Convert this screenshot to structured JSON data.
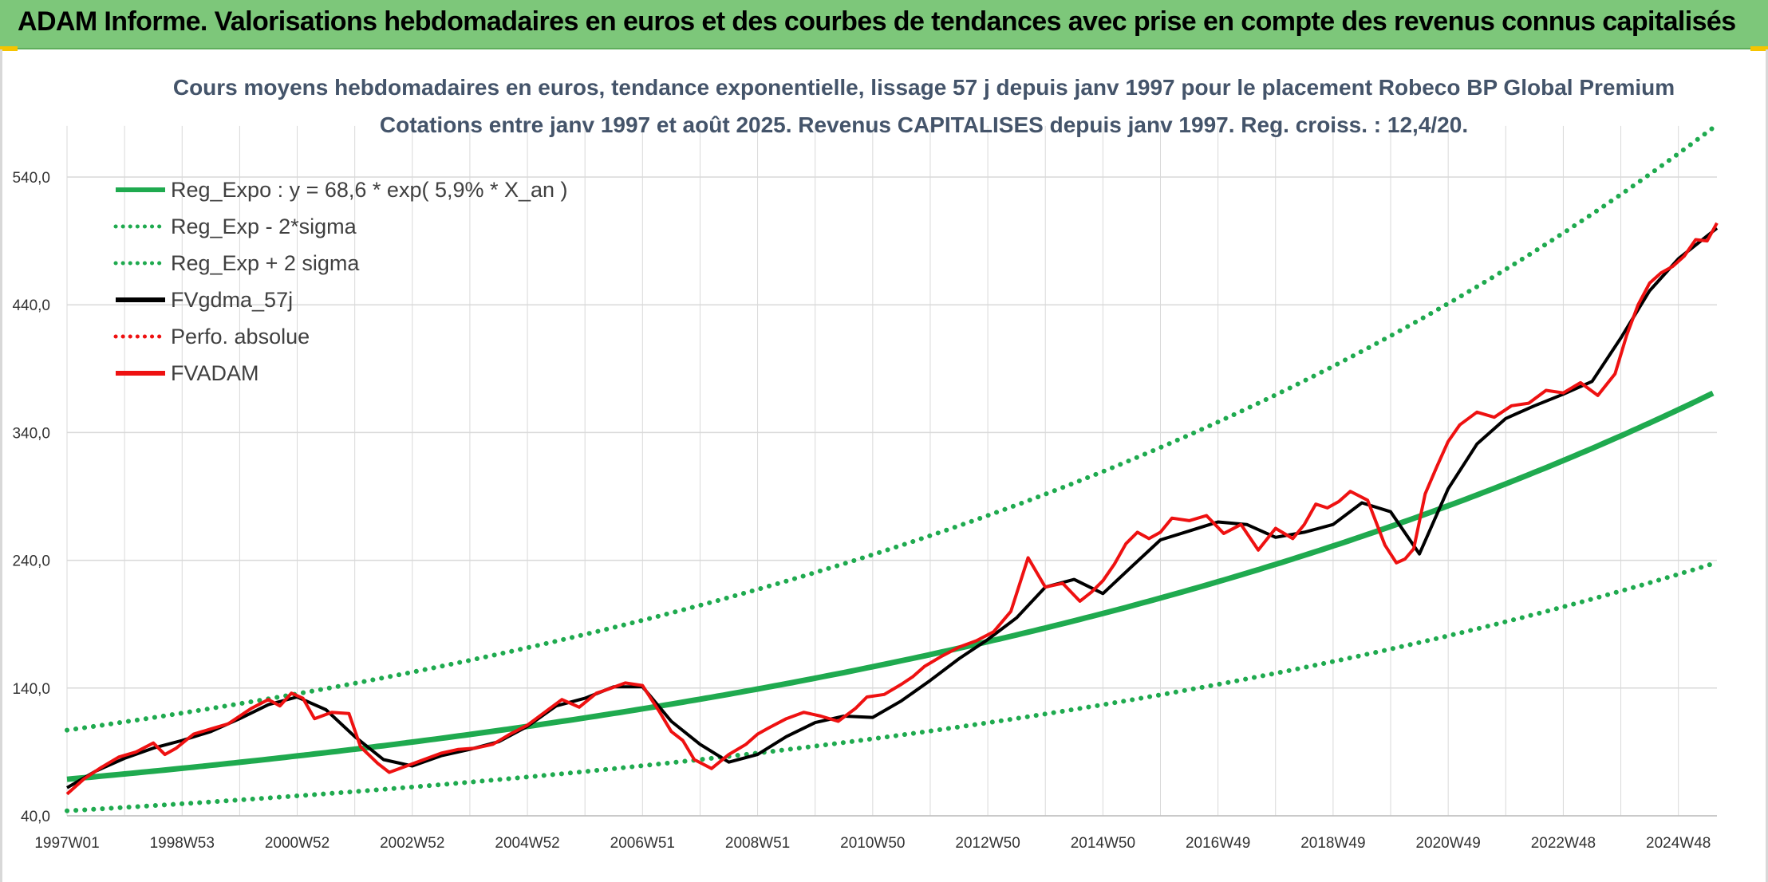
{
  "header": {
    "title": "ADAM Informe. Valorisations hebdomadaires en euros et des courbes de tendances avec prise en compte des revenus connus capitalisés"
  },
  "colors": {
    "header_bg": "#7dc77a",
    "reg_green": "#1faa4f",
    "fvadam_red": "#ee1111",
    "gdma_black": "#000000",
    "grid": "#d9d9d9"
  },
  "chart_data": {
    "type": "line",
    "title_line1": "Cours moyens hebdomadaires en euros, tendance exponentielle, lissage 57 j depuis janv 1997 pour le placement Robeco BP Global Premium",
    "title_line2": "Cotations entre janv 1997 et août 2025. Revenus CAPITALISES depuis janv 1997. Reg. croiss. : 12,4/20.",
    "x_tick_labels": [
      "1997W01",
      "1998W53",
      "2000W52",
      "2002W52",
      "2004W52",
      "2006W51",
      "2008W51",
      "2010W50",
      "2012W50",
      "2014W50",
      "2016W49",
      "2018W49",
      "2020W49",
      "2022W48",
      "2024W48"
    ],
    "y_tick_labels": [
      "40,0",
      "140,0",
      "240,0",
      "340,0",
      "440,0",
      "540,0"
    ],
    "ylim": [
      40,
      580
    ],
    "xlim": [
      1997.0,
      2025.67
    ],
    "grid": true,
    "legend_position": "top-left",
    "legend": [
      {
        "label": "Reg_Expo : y = 68,6 * exp( 5,9% *  X_an )",
        "style": "solid",
        "color": "#1faa4f"
      },
      {
        "label": "Reg_Exp - 2*sigma",
        "style": "dotted",
        "color": "#1faa4f"
      },
      {
        "label": "Reg_Exp + 2 sigma",
        "style": "dotted",
        "color": "#1faa4f"
      },
      {
        "label": "FVgdma_57j",
        "style": "solid",
        "color": "#000000"
      },
      {
        "label": "Perfo. absolue",
        "style": "dotted",
        "color": "#ee1111"
      },
      {
        "label": "FVADAM",
        "style": "solid",
        "color": "#ee1111"
      }
    ],
    "regression": {
      "a": 68.6,
      "growth": 0.059,
      "lower_factor": 0.64,
      "upper_factor": 1.56
    },
    "fvadam": {
      "x": [
        1997.0,
        1997.3,
        1997.6,
        1997.9,
        1998.2,
        1998.5,
        1998.7,
        1998.9,
        1999.2,
        1999.5,
        1999.8,
        2000.0,
        2000.2,
        2000.5,
        2000.7,
        2000.9,
        2001.1,
        2001.3,
        2001.6,
        2001.9,
        2002.1,
        2002.4,
        2002.6,
        2002.9,
        2003.2,
        2003.5,
        2003.8,
        2004.1,
        2004.4,
        2004.7,
        2005.0,
        2005.3,
        2005.6,
        2005.9,
        2006.2,
        2006.4,
        2006.7,
        2007.0,
        2007.3,
        2007.5,
        2007.7,
        2007.9,
        2008.2,
        2008.5,
        2008.8,
        2009.0,
        2009.2,
        2009.5,
        2009.8,
        2010.1,
        2010.4,
        2010.7,
        2010.9,
        2011.2,
        2011.5,
        2011.7,
        2011.9,
        2012.2,
        2012.5,
        2012.8,
        2013.1,
        2013.4,
        2013.7,
        2014.0,
        2014.3,
        2014.6,
        2014.8,
        2015.0,
        2015.2,
        2015.4,
        2015.6,
        2015.8,
        2016.0,
        2016.2,
        2016.5,
        2016.8,
        2017.1,
        2017.4,
        2017.7,
        2018.0,
        2018.3,
        2018.5,
        2018.7,
        2018.9,
        2019.1,
        2019.3,
        2019.6,
        2019.9,
        2020.1,
        2020.25,
        2020.4,
        2020.6,
        2020.8,
        2021.0,
        2021.2,
        2021.5,
        2021.8,
        2022.1,
        2022.4,
        2022.7,
        2023.0,
        2023.3,
        2023.6,
        2023.9,
        2024.1,
        2024.3,
        2024.5,
        2024.7,
        2024.9,
        2025.1,
        2025.3,
        2025.5,
        2025.67
      ],
      "y": [
        57,
        69,
        78,
        86,
        90,
        97,
        88,
        93,
        104,
        108,
        112,
        118,
        124,
        131,
        126,
        136,
        132,
        116,
        121,
        120,
        94,
        81,
        74,
        79,
        84,
        89,
        92,
        93,
        96,
        104,
        111,
        121,
        131,
        125,
        136,
        139,
        144,
        142,
        121,
        106,
        99,
        84,
        77,
        88,
        96,
        104,
        109,
        116,
        121,
        118,
        114,
        124,
        133,
        135,
        143,
        149,
        157,
        165,
        172,
        177,
        184,
        200,
        242,
        219,
        222,
        208,
        215,
        224,
        237,
        253,
        262,
        257,
        262,
        273,
        271,
        275,
        261,
        268,
        248,
        265,
        257,
        268,
        284,
        281,
        286,
        294,
        287,
        252,
        238,
        241,
        249,
        292,
        313,
        333,
        346,
        356,
        352,
        361,
        363,
        373,
        371,
        379,
        369,
        386,
        416,
        440,
        457,
        465,
        470,
        478,
        491,
        490,
        504
      ]
    },
    "fvgdma_57j": {
      "x": [
        1997.0,
        1997.5,
        1998.0,
        1998.5,
        1999.0,
        1999.5,
        2000.0,
        2000.5,
        2001.0,
        2001.5,
        2002.0,
        2002.5,
        2003.0,
        2003.5,
        2004.0,
        2004.5,
        2005.0,
        2005.5,
        2006.0,
        2006.5,
        2007.0,
        2007.5,
        2008.0,
        2008.5,
        2009.0,
        2009.5,
        2010.0,
        2010.5,
        2011.0,
        2011.5,
        2012.0,
        2012.5,
        2013.0,
        2013.5,
        2014.0,
        2014.5,
        2015.0,
        2015.5,
        2016.0,
        2016.5,
        2017.0,
        2017.5,
        2018.0,
        2018.5,
        2019.0,
        2019.5,
        2020.0,
        2020.5,
        2021.0,
        2021.5,
        2022.0,
        2022.5,
        2023.0,
        2023.5,
        2024.0,
        2024.5,
        2025.0,
        2025.67
      ],
      "y": [
        62,
        75,
        85,
        93,
        99,
        106,
        116,
        127,
        133,
        123,
        102,
        84,
        79,
        87,
        92,
        98,
        110,
        126,
        132,
        141,
        141,
        114,
        96,
        82,
        88,
        102,
        113,
        118,
        117,
        130,
        146,
        163,
        178,
        195,
        219,
        225,
        214,
        235,
        256,
        263,
        270,
        268,
        258,
        262,
        268,
        285,
        278,
        245,
        296,
        331,
        351,
        361,
        370,
        380,
        414,
        451,
        476,
        500
      ]
    }
  }
}
